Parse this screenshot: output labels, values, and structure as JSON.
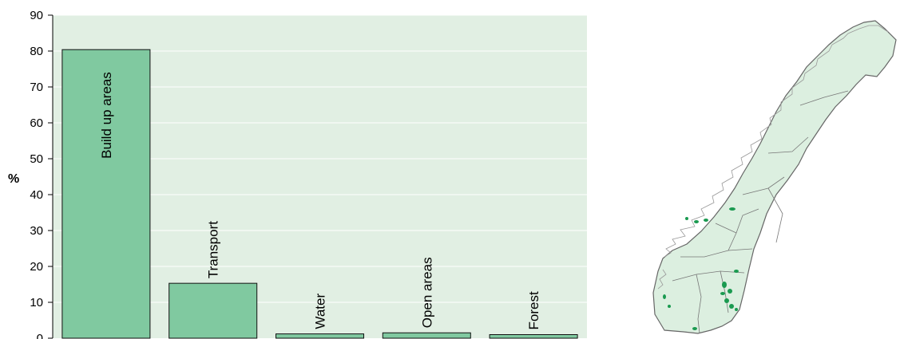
{
  "chart_data": {
    "type": "bar",
    "categories": [
      "Build up areas",
      "Transport",
      "Water",
      "Open areas",
      "Forest"
    ],
    "values": [
      80.4,
      15.3,
      1.2,
      1.5,
      1.0
    ],
    "ylabel": "%",
    "ylim": [
      0,
      90
    ],
    "yticks": [
      0,
      10,
      20,
      30,
      40,
      50,
      60,
      70,
      80,
      90
    ],
    "grid": true,
    "colors": {
      "plot_bg": "#e1efe3",
      "bar_fill": "#80c9a0",
      "bar_stroke": "#111111",
      "grid": "#ffffff"
    }
  },
  "map": {
    "region": "Norway",
    "land_color": "#dcefe0",
    "border_color": "#666666",
    "marker_color": "#1a9a50"
  }
}
